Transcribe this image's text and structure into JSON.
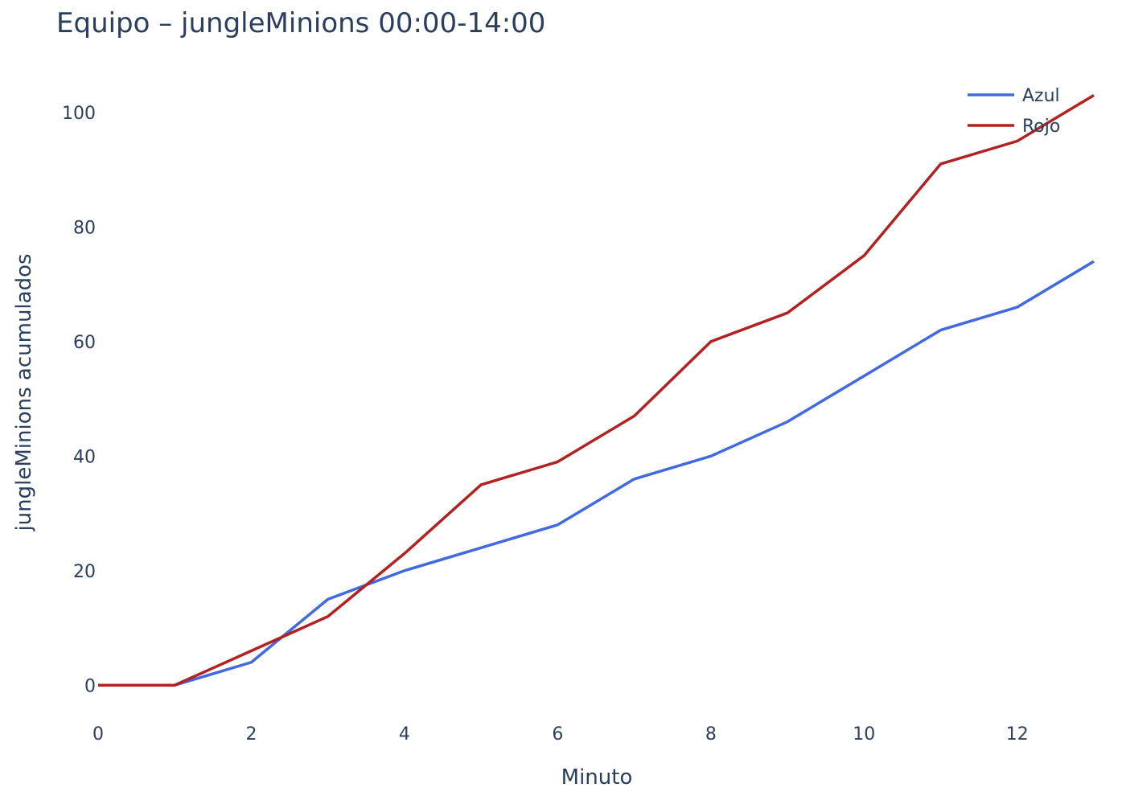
{
  "chart_data": {
    "type": "line",
    "title": "Equipo – jungleMinions 00:00-14:00",
    "xlabel": "Minuto",
    "ylabel": "jungleMinions acumulados",
    "xlim": [
      0,
      13
    ],
    "ylim": [
      -6,
      107
    ],
    "x_ticks": [
      0,
      2,
      4,
      6,
      8,
      10,
      12
    ],
    "y_ticks": [
      0,
      20,
      40,
      60,
      80,
      100
    ],
    "x_tick_labels": [
      "0",
      "2",
      "4",
      "6",
      "8",
      "10",
      "12"
    ],
    "y_tick_labels": [
      "0",
      "20",
      "40",
      "60",
      "80",
      "100"
    ],
    "grid": false,
    "legend_position": "top-right",
    "x": [
      0,
      1,
      2,
      3,
      4,
      5,
      6,
      7,
      8,
      9,
      10,
      11,
      12,
      13
    ],
    "series": [
      {
        "name": "Azul",
        "color": "#4169e1",
        "values": [
          0,
          0,
          4,
          15,
          20,
          24,
          28,
          36,
          40,
          46,
          54,
          62,
          66,
          74
        ]
      },
      {
        "name": "Rojo",
        "color": "#b22222",
        "values": [
          0,
          0,
          6,
          12,
          23,
          35,
          39,
          47,
          60,
          65,
          75,
          91,
          95,
          103
        ]
      }
    ]
  }
}
